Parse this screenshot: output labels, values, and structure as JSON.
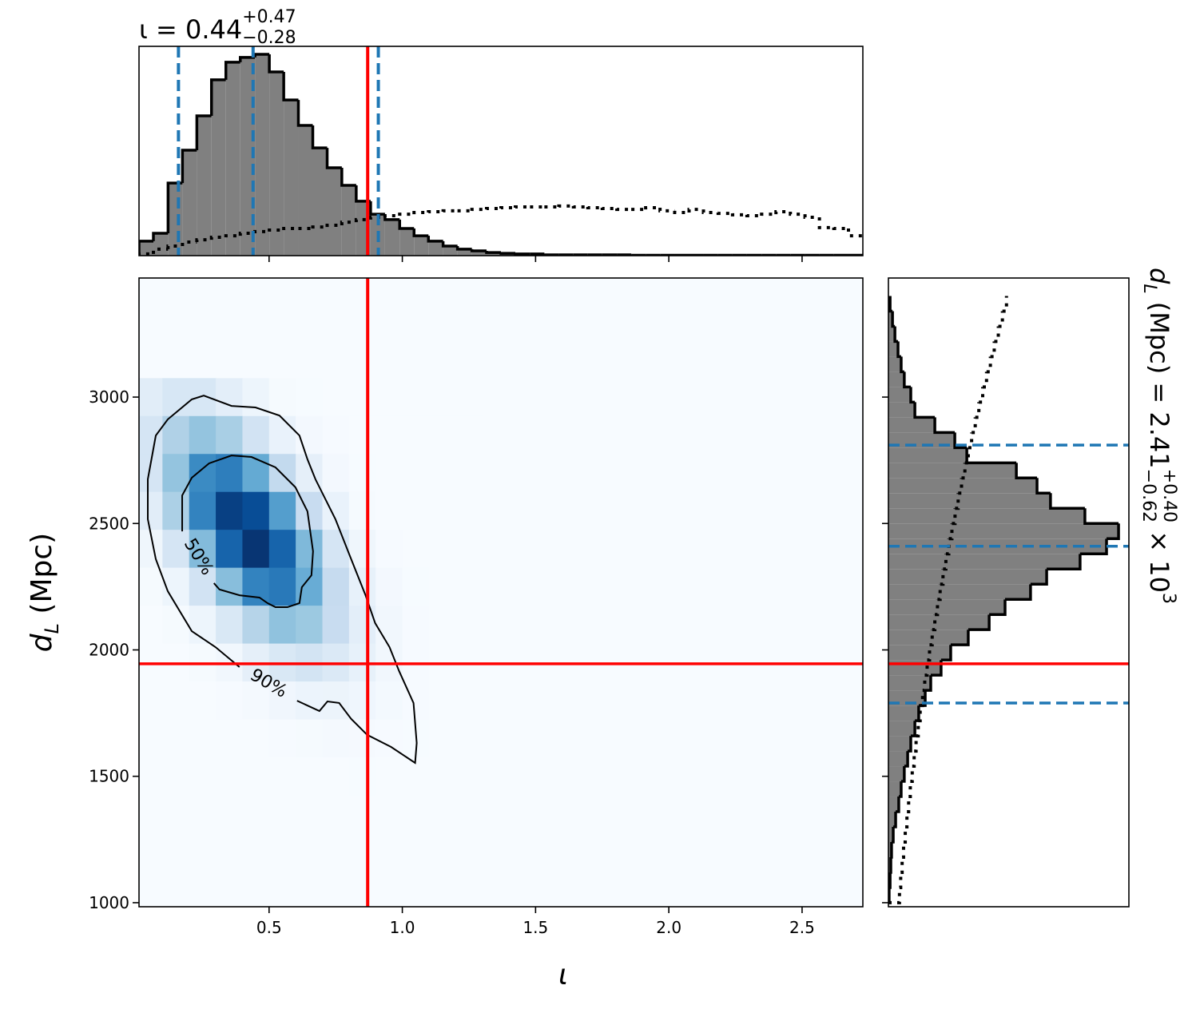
{
  "chart_data": [
    {
      "type": "histogram",
      "orientation": "vertical",
      "title": {
        "text": "ι = 0.44",
        "sup": "+0.47",
        "sub": "−0.28"
      },
      "bins": [
        0.012,
        0.066,
        0.121,
        0.175,
        0.229,
        0.284,
        0.338,
        0.392,
        0.447,
        0.501,
        0.555,
        0.61,
        0.664,
        0.718,
        0.773,
        0.827,
        0.881,
        0.935,
        0.99,
        1.044,
        1.098,
        1.153,
        1.207,
        1.261,
        1.316,
        1.37,
        1.424,
        1.479,
        1.533,
        1.587,
        1.642,
        1.696,
        1.75,
        1.805,
        1.859,
        1.913,
        1.967,
        2.022,
        2.076,
        2.13,
        2.185,
        2.239,
        2.293,
        2.348,
        2.402,
        2.456,
        2.511,
        2.565,
        2.619,
        2.674,
        2.728
      ],
      "series": [
        {
          "color": "#000000",
          "fill_color": "#808080",
          "linestyle": "solid",
          "values": [
            0.069,
            0.107,
            0.347,
            0.504,
            0.668,
            0.84,
            0.924,
            0.947,
            0.962,
            0.878,
            0.744,
            0.622,
            0.515,
            0.42,
            0.336,
            0.26,
            0.198,
            0.172,
            0.13,
            0.095,
            0.069,
            0.046,
            0.031,
            0.023,
            0.015,
            0.011,
            0.008,
            0.008,
            0.004,
            0.004,
            0.004,
            0.004,
            0.004,
            0.004,
            0.002,
            0.002,
            0.002,
            0.002,
            0.002,
            0.002,
            0.002,
            0.002,
            0.002,
            0.002,
            0.002,
            0.002,
            0.002,
            0.002,
            0.002,
            0.002
          ]
        },
        {
          "color": "#000000",
          "linestyle": "dotted",
          "values": [
            0.008,
            0.031,
            0.046,
            0.065,
            0.076,
            0.088,
            0.095,
            0.107,
            0.115,
            0.122,
            0.13,
            0.13,
            0.137,
            0.145,
            0.16,
            0.172,
            0.183,
            0.191,
            0.198,
            0.206,
            0.21,
            0.214,
            0.214,
            0.221,
            0.225,
            0.229,
            0.233,
            0.233,
            0.233,
            0.237,
            0.233,
            0.229,
            0.225,
            0.221,
            0.221,
            0.229,
            0.214,
            0.206,
            0.221,
            0.206,
            0.202,
            0.195,
            0.191,
            0.198,
            0.21,
            0.198,
            0.183,
            0.134,
            0.13,
            0.095
          ]
        }
      ],
      "vlines": [
        {
          "values": [
            0.16,
            0.44,
            0.91
          ],
          "color": "#1f77b4",
          "linestyle": "dashed"
        },
        {
          "values": [
            0.87
          ],
          "color": "#ff0000",
          "linestyle": "solid"
        }
      ],
      "xlim": [
        0.012,
        2.728
      ],
      "ylim": [
        0,
        1
      ],
      "xticks": [
        0.5,
        1,
        1.5,
        2,
        2.5
      ],
      "show_tick_labels": false
    },
    {
      "type": "density",
      "cmap": "Blues",
      "xlabel": "ι",
      "ylabel": {
        "symbol": "d",
        "symbol_sub": "L",
        "text": " (Mpc)"
      },
      "xlim": [
        0.012,
        2.728
      ],
      "ylim": [
        984,
        3471
      ],
      "xticks": [
        0.5,
        {
          "value": 1,
          "label": "1.0"
        },
        1.5,
        {
          "value": 2,
          "label": "2.0"
        },
        2.5
      ],
      "yticks": [
        1000,
        1500,
        2000,
        2500,
        3000
      ],
      "xbins": [
        0,
        0.1,
        0.2,
        0.3,
        0.4,
        0.5,
        0.6,
        0.7,
        0.8,
        0.9,
        1,
        1.1,
        1.2,
        1.3
      ],
      "ybins": [
        3075,
        2925,
        2775,
        2625,
        2475,
        2325,
        2175,
        2025,
        1875,
        1725,
        1575,
        1425
      ],
      "z": [
        [
          0.11,
          0.16,
          0.16,
          0.1,
          0.05,
          0.01,
          0.003,
          0,
          0,
          0,
          0,
          0,
          0
        ],
        [
          0.17,
          0.32,
          0.4,
          0.34,
          0.19,
          0.07,
          0.02,
          0.004,
          0,
          0,
          0,
          0,
          0
        ],
        [
          0.17,
          0.4,
          0.65,
          0.7,
          0.52,
          0.26,
          0.09,
          0.02,
          0.003,
          0,
          0,
          0,
          0
        ],
        [
          0.11,
          0.33,
          0.68,
          0.94,
          0.89,
          0.57,
          0.24,
          0.07,
          0.01,
          0.002,
          0,
          0,
          0
        ],
        [
          0.04,
          0.17,
          0.44,
          0.8,
          0.98,
          0.8,
          0.45,
          0.17,
          0.04,
          0.007,
          0,
          0,
          0
        ],
        [
          0.01,
          0.05,
          0.19,
          0.43,
          0.68,
          0.72,
          0.51,
          0.25,
          0.08,
          0.02,
          0.003,
          0,
          0
        ],
        [
          0.002,
          0.01,
          0.05,
          0.15,
          0.3,
          0.41,
          0.38,
          0.24,
          0.1,
          0.03,
          0.005,
          0.001,
          0
        ],
        [
          0,
          0.002,
          0.009,
          0.03,
          0.09,
          0.15,
          0.18,
          0.14,
          0.08,
          0.03,
          0.007,
          0.001,
          0
        ],
        [
          0,
          0,
          0.001,
          0.005,
          0.016,
          0.036,
          0.054,
          0.056,
          0.039,
          0.018,
          0.006,
          0.001,
          0
        ],
        [
          0,
          0,
          0,
          0,
          0.002,
          0.005,
          0.01,
          0.014,
          0.012,
          0.007,
          0.003,
          0.001,
          0
        ],
        [
          0,
          0,
          0,
          0,
          0,
          0,
          0.001,
          0.002,
          0.003,
          0.002,
          0.001,
          0,
          0
        ]
      ],
      "contours": [
        {
          "label": "50%",
          "x": [
            0.174,
            0.174,
            0.21,
            0.275,
            0.359,
            0.434,
            0.524,
            0.599,
            0.644,
            0.665,
            0.659,
            0.623,
            0.614,
            0.569,
            0.524,
            0.494,
            0.464,
            0.389,
            0.314,
            0.293
          ],
          "y": [
            2469,
            2611,
            2681,
            2738,
            2769,
            2763,
            2722,
            2643,
            2548,
            2390,
            2295,
            2248,
            2185,
            2169,
            2169,
            2185,
            2207,
            2216,
            2239,
            2264
          ]
        },
        {
          "label": "90%",
          "x": [
            0.605,
            0.689,
            0.719,
            0.763,
            0.808,
            0.868,
            0.958,
            1.048,
            1.054,
            1.042,
            0.988,
            0.952,
            0.898,
            0.862,
            0.808,
            0.749,
            0.674,
            0.644,
            0.614,
            0.539,
            0.449,
            0.359,
            0.255,
            0.21,
            0.12,
            0.075,
            0.045,
            0.045,
            0.075,
            0.12,
            0.21,
            0.299,
            0.389
          ],
          "y": [
            1799,
            1758,
            1796,
            1790,
            1727,
            1664,
            1616,
            1553,
            1632,
            1790,
            1916,
            2011,
            2106,
            2216,
            2359,
            2517,
            2675,
            2754,
            2848,
            2927,
            2959,
            2965,
            3006,
            2991,
            2912,
            2848,
            2675,
            2517,
            2359,
            2232,
            2074,
            2011,
            1932
          ]
        }
      ],
      "vlines": [
        {
          "values": [
            0.87
          ],
          "color": "#ff0000",
          "linestyle": "solid"
        }
      ],
      "hlines": [
        {
          "values": [
            1945
          ],
          "color": "#ff0000",
          "linestyle": "solid"
        }
      ]
    },
    {
      "type": "histogram",
      "orientation": "horizontal",
      "title": {
        "symbol": "d",
        "symbol_sub": "L",
        "text": " (Mpc) = 2.41",
        "sup": "+0.40",
        "sub": "−0.62",
        "factor": " × 10",
        "factor_sup": "3"
      },
      "bins": [
        1000,
        1060,
        1120,
        1180,
        1240,
        1300,
        1360,
        1420,
        1480,
        1540,
        1600,
        1660,
        1720,
        1780,
        1840,
        1900,
        1960,
        2020,
        2080,
        2140,
        2200,
        2260,
        2320,
        2380,
        2440,
        2500,
        2560,
        2620,
        2680,
        2740,
        2800,
        2860,
        2920,
        2980,
        3040,
        3100,
        3160,
        3220,
        3280,
        3340,
        3400
      ],
      "series": [
        {
          "color": "#000000",
          "fill_color": "#808080",
          "linestyle": "solid",
          "values": [
            0.003,
            0.007,
            0.01,
            0.013,
            0.02,
            0.03,
            0.043,
            0.053,
            0.066,
            0.08,
            0.093,
            0.11,
            0.126,
            0.153,
            0.176,
            0.219,
            0.259,
            0.332,
            0.419,
            0.485,
            0.591,
            0.658,
            0.797,
            0.907,
            0.957,
            0.817,
            0.674,
            0.618,
            0.532,
            0.326,
            0.276,
            0.193,
            0.11,
            0.093,
            0.066,
            0.053,
            0.04,
            0.027,
            0.017,
            0.007
          ]
        },
        {
          "color": "#000000",
          "linestyle": "dotted",
          "values": [
            0.046,
            0.051,
            0.057,
            0.063,
            0.07,
            0.077,
            0.084,
            0.091,
            0.099,
            0.107,
            0.115,
            0.124,
            0.132,
            0.142,
            0.151,
            0.161,
            0.171,
            0.182,
            0.193,
            0.204,
            0.215,
            0.227,
            0.239,
            0.251,
            0.264,
            0.277,
            0.29,
            0.304,
            0.318,
            0.332,
            0.346,
            0.361,
            0.376,
            0.392,
            0.408,
            0.424,
            0.44,
            0.457,
            0.474,
            0.491
          ]
        }
      ],
      "hlines": [
        {
          "values": [
            2810,
            2410,
            1790
          ],
          "color": "#1f77b4",
          "linestyle": "dashed"
        },
        {
          "values": [
            1945
          ],
          "color": "#ff0000",
          "linestyle": "solid"
        }
      ],
      "xlim": [
        0,
        1
      ],
      "ylim": [
        984,
        3471
      ],
      "yticks": [
        1000,
        1500,
        2000,
        2500,
        3000
      ],
      "show_tick_labels": false
    }
  ]
}
